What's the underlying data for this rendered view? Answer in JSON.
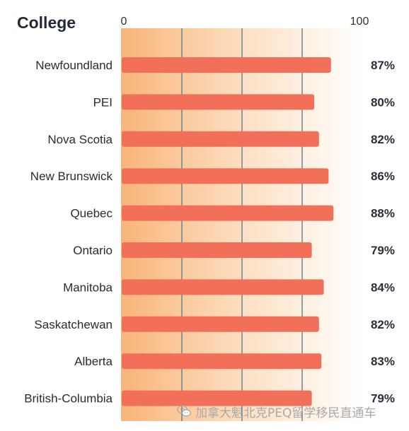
{
  "chart_data": {
    "type": "bar",
    "orientation": "horizontal",
    "title": "College",
    "xlim": [
      0,
      100
    ],
    "x_tick_labels": [
      "0",
      "100"
    ],
    "gridlines": [
      0,
      25,
      50,
      75,
      100
    ],
    "categories": [
      "Newfoundland",
      "PEI",
      "Nova Scotia",
      "New Brunswick",
      "Quebec",
      "Ontario",
      "Manitoba",
      "Saskatchewan",
      "Alberta",
      "British-Columbia"
    ],
    "values": [
      87,
      80,
      82,
      86,
      88,
      79,
      84,
      82,
      83,
      79
    ],
    "value_labels": [
      "87%",
      "80%",
      "82%",
      "86%",
      "88%",
      "79%",
      "84%",
      "82%",
      "83%",
      "79%"
    ]
  },
  "colors": {
    "bar": "#f26f5a",
    "background_gradient_start": "#f8b57a",
    "background_gradient_end": "#ffffff",
    "gridline": "#5b7f92",
    "title": "#222a38"
  },
  "watermark": {
    "icon": "wechat-icon",
    "text": "加拿大魁北克PEQ留学移民直通车"
  }
}
